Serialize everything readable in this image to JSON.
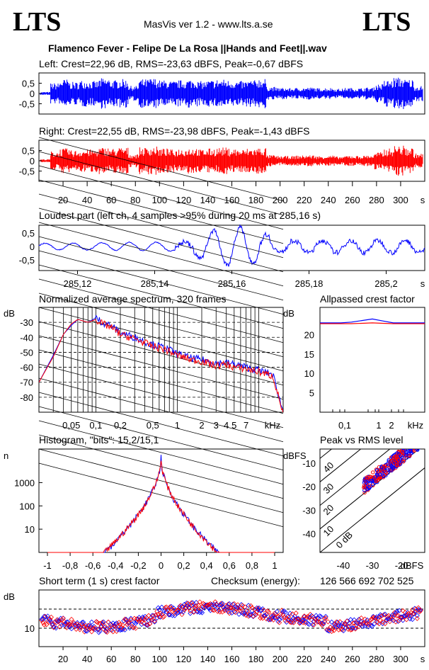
{
  "header": {
    "logo_left": "LTS",
    "logo_right": "LTS",
    "app_title": "MasVis ver 1.2 - www.lts.a.se",
    "file_title": "Flamenco Fever - Felipe De La Rosa ||Hands and Feet||.wav"
  },
  "colors": {
    "left": "#0000ff",
    "right": "#ff0000",
    "grid": "#000000"
  },
  "chart_data": [
    {
      "type": "line",
      "name": "left-waveform",
      "title": "Left: Crest=22,96 dB, RMS=-23,63 dBFS, Peak=-0,67 dBFS",
      "ylim": [
        -1,
        1
      ],
      "yticks": [
        "0,5",
        "0",
        "-0,5"
      ],
      "envelope": [
        0.08,
        0.55,
        0.75,
        0.6,
        0.7,
        0.65,
        0.8,
        0.7,
        0.75,
        0.4,
        0.75,
        0.8,
        0.7,
        0.65,
        0.7,
        0.75,
        0.65,
        0.7,
        0.75,
        0.7,
        0.65,
        0.7,
        0.8,
        0.35,
        0.3,
        0.28,
        0.3,
        0.32,
        0.28,
        0.3,
        0.25,
        0.3,
        0.28,
        0.32,
        0.5,
        0.7,
        0.85,
        0.75,
        0.4
      ]
    },
    {
      "type": "line",
      "name": "right-waveform",
      "title": "Right: Crest=22,55 dB, RMS=-23,98 dBFS, Peak=-1,43 dBFS",
      "ylim": [
        -1,
        1
      ],
      "yticks": [
        "0,5",
        "0",
        "-0,5"
      ],
      "envelope": [
        0.08,
        0.5,
        0.65,
        0.55,
        0.6,
        0.6,
        0.7,
        0.65,
        0.7,
        0.35,
        0.7,
        0.75,
        0.65,
        0.6,
        0.65,
        0.7,
        0.6,
        0.65,
        0.7,
        0.65,
        0.6,
        0.65,
        0.7,
        0.3,
        0.25,
        0.25,
        0.28,
        0.3,
        0.25,
        0.28,
        0.22,
        0.28,
        0.26,
        0.3,
        0.45,
        0.65,
        0.8,
        0.7,
        0.38
      ],
      "xticks": [
        "20",
        "40",
        "60",
        "80",
        "100",
        "120",
        "140",
        "160",
        "180",
        "200",
        "220",
        "240",
        "260",
        "280",
        "300",
        "s"
      ],
      "xrange_s": [
        0,
        320
      ]
    },
    {
      "type": "line",
      "name": "loudest-part",
      "title": "Loudest part (left  ch, 4 samples >95% during 20 ms at 285,16 s)",
      "ylim": [
        -1,
        1
      ],
      "yticks": [
        "0,5",
        "0",
        "-0,5"
      ],
      "xrange_s": [
        285.11,
        285.21
      ],
      "xticks": [
        "285,12",
        "285,14",
        "285,16",
        "285,18",
        "285,2",
        "s"
      ]
    },
    {
      "type": "line",
      "name": "average-spectrum",
      "title": "Normalized average spectrum, 320 frames",
      "ylabel": "dB",
      "yticks": [
        "-30",
        "-40",
        "-50",
        "-60",
        "-70",
        "-80"
      ],
      "xticks": [
        "0,05",
        "0,1",
        "0,2",
        "0,5",
        "1",
        "2",
        "3",
        "4",
        "5",
        "7",
        "kHz"
      ],
      "ylim": [
        -90,
        -20
      ],
      "freq_khz": [
        0.02,
        0.03,
        0.04,
        0.05,
        0.06,
        0.08,
        0.1,
        0.12,
        0.15,
        0.2,
        0.3,
        0.5,
        0.7,
        1,
        1.5,
        2,
        3,
        4,
        5,
        7,
        10,
        15,
        20
      ],
      "series": [
        {
          "name": "Left",
          "values": [
            -70,
            -52,
            -38,
            -32,
            -28,
            -30,
            -27,
            -30,
            -32,
            -37,
            -40,
            -45,
            -47,
            -51,
            -54,
            -55,
            -57,
            -57,
            -58,
            -60,
            -62,
            -65,
            -90
          ]
        },
        {
          "name": "Right",
          "values": [
            -70,
            -53,
            -38,
            -31,
            -28,
            -30,
            -28,
            -31,
            -33,
            -38,
            -41,
            -46,
            -48,
            -52,
            -55,
            -56,
            -59,
            -58,
            -60,
            -61,
            -63,
            -66,
            -91
          ]
        }
      ]
    },
    {
      "type": "line",
      "name": "allpassed-crest",
      "title": "Allpassed crest factor",
      "ylabel": "dB",
      "yticks": [
        "20",
        "15",
        "10",
        "5"
      ],
      "xticks": [
        "0,1",
        "1",
        "2",
        "kHz"
      ],
      "ylim": [
        0,
        27
      ],
      "series": [
        {
          "name": "Left",
          "values": [
            23,
            23,
            23,
            23.2,
            23.6,
            24,
            23.5,
            23,
            23,
            23,
            23
          ]
        },
        {
          "name": "Right",
          "values": [
            22.8,
            22.8,
            22.8,
            22.8,
            22.9,
            23,
            22.9,
            22.8,
            22.8,
            22.8,
            22.8
          ]
        }
      ]
    },
    {
      "type": "line",
      "name": "histogram",
      "title": "Histogram, \"bits\": 15,2/15,1",
      "ylabel": "n",
      "yticks": [
        "1000",
        "100",
        "10"
      ],
      "xticks": [
        "-1",
        "-0,8",
        "-0,6",
        "-0,4",
        "-0,2",
        "0",
        "0,2",
        "0,4",
        "0,6",
        "0,8",
        "1"
      ],
      "xlim": [
        -1,
        1
      ]
    },
    {
      "type": "scatter",
      "name": "peak-vs-rms",
      "title": "Peak vs RMS level",
      "ylabel": "dBFS",
      "yticks": [
        "-10",
        "-20",
        "-30",
        "-40"
      ],
      "xticks": [
        "-40",
        "-30",
        "-20",
        "dBFS"
      ],
      "diagonal_labels": [
        "40",
        "30",
        "20",
        "10",
        "0 dB"
      ],
      "xlim": [
        -48,
        -12
      ],
      "ylim": [
        -48,
        -4
      ]
    },
    {
      "type": "scatter",
      "name": "short-term-crest",
      "title": "Short term (1 s) crest factor",
      "ylabel": "dB",
      "yticks": [
        "10"
      ],
      "xticks": [
        "20",
        "40",
        "60",
        "80",
        "100",
        "120",
        "140",
        "160",
        "180",
        "200",
        "220",
        "240",
        "260",
        "280",
        "300",
        "s"
      ],
      "xrange_s": [
        0,
        320
      ]
    }
  ],
  "checksum": {
    "label": "Checksum (energy):",
    "value": "126 566 692 702 525"
  }
}
